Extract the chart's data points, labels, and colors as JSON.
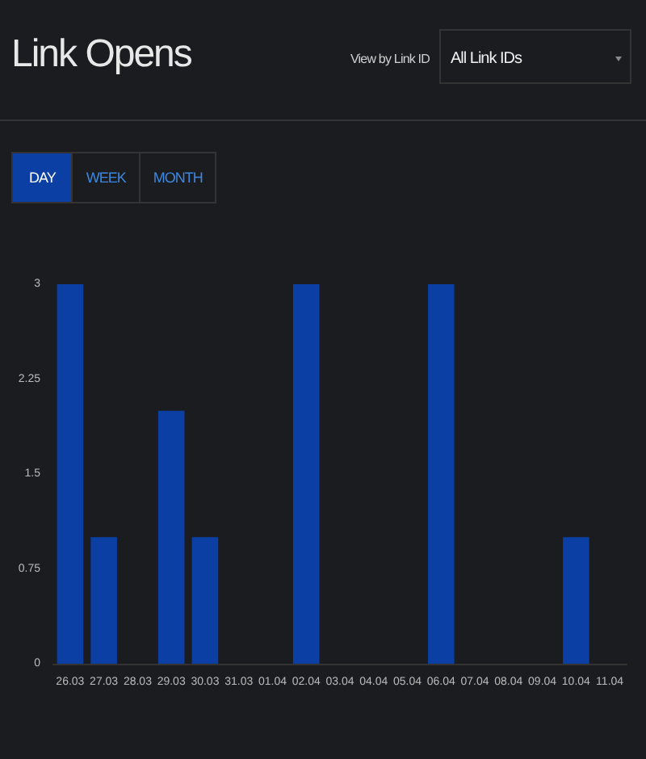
{
  "chart_data": {
    "type": "bar",
    "title": "Link Opens",
    "annotations": [
      "View by Link ID",
      "All Link IDs",
      "DAY",
      "WEEK",
      "MONTH"
    ],
    "categories": [
      "26.03",
      "27.03",
      "28.03",
      "29.03",
      "30.03",
      "31.03",
      "01.04",
      "02.04",
      "03.04",
      "04.04",
      "05.04",
      "06.04",
      "07.04",
      "08.04",
      "09.04",
      "10.04",
      "11.04"
    ],
    "values": [
      3,
      1,
      0,
      2,
      1,
      0,
      0,
      3,
      0,
      0,
      0,
      3,
      0,
      0,
      0,
      1,
      0
    ],
    "color": "#0b3fa3",
    "ylim": [
      0,
      3
    ],
    "yticks": [
      0,
      0.75,
      1.5,
      2.25,
      3
    ],
    "grid": false
  }
}
